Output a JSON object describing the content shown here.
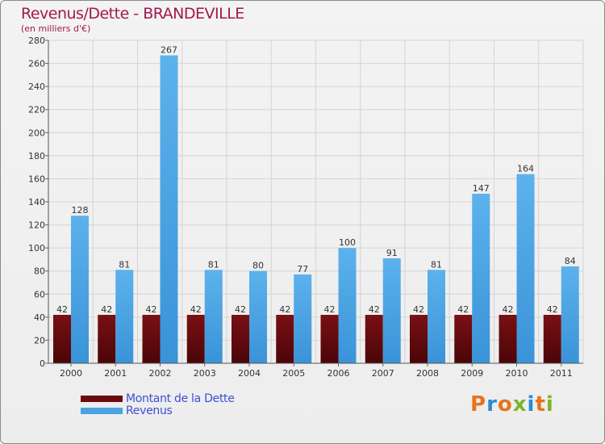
{
  "chart_data": {
    "type": "bar",
    "title": "Revenus/Dette - BRANDEVILLE",
    "subtitle": "(en milliers d'€)",
    "categories": [
      "2000",
      "2001",
      "2002",
      "2003",
      "2004",
      "2005",
      "2006",
      "2007",
      "2008",
      "2009",
      "2010",
      "2011"
    ],
    "series": [
      {
        "name": "Montant de la Dette",
        "color": "#6b0a0f",
        "values": [
          42,
          42,
          42,
          42,
          42,
          42,
          42,
          42,
          42,
          42,
          42,
          42
        ]
      },
      {
        "name": "Revenus",
        "color": "#4ba3e3",
        "values": [
          128,
          81,
          267,
          81,
          80,
          77,
          100,
          91,
          81,
          147,
          164,
          84
        ]
      }
    ],
    "yticks": [
      0,
      20,
      40,
      60,
      80,
      100,
      120,
      140,
      160,
      180,
      200,
      220,
      240,
      260,
      280
    ],
    "ylim": [
      0,
      280
    ],
    "grid": true,
    "legend_position": "bottom-left"
  },
  "brand": {
    "letters": [
      "P",
      "r",
      "o",
      "x",
      "i",
      "t",
      "i"
    ],
    "colors": [
      "#e8731c",
      "#2a8ad4",
      "#e8731c",
      "#7ab52c",
      "#2a8ad4",
      "#e8731c",
      "#7ab52c"
    ]
  }
}
